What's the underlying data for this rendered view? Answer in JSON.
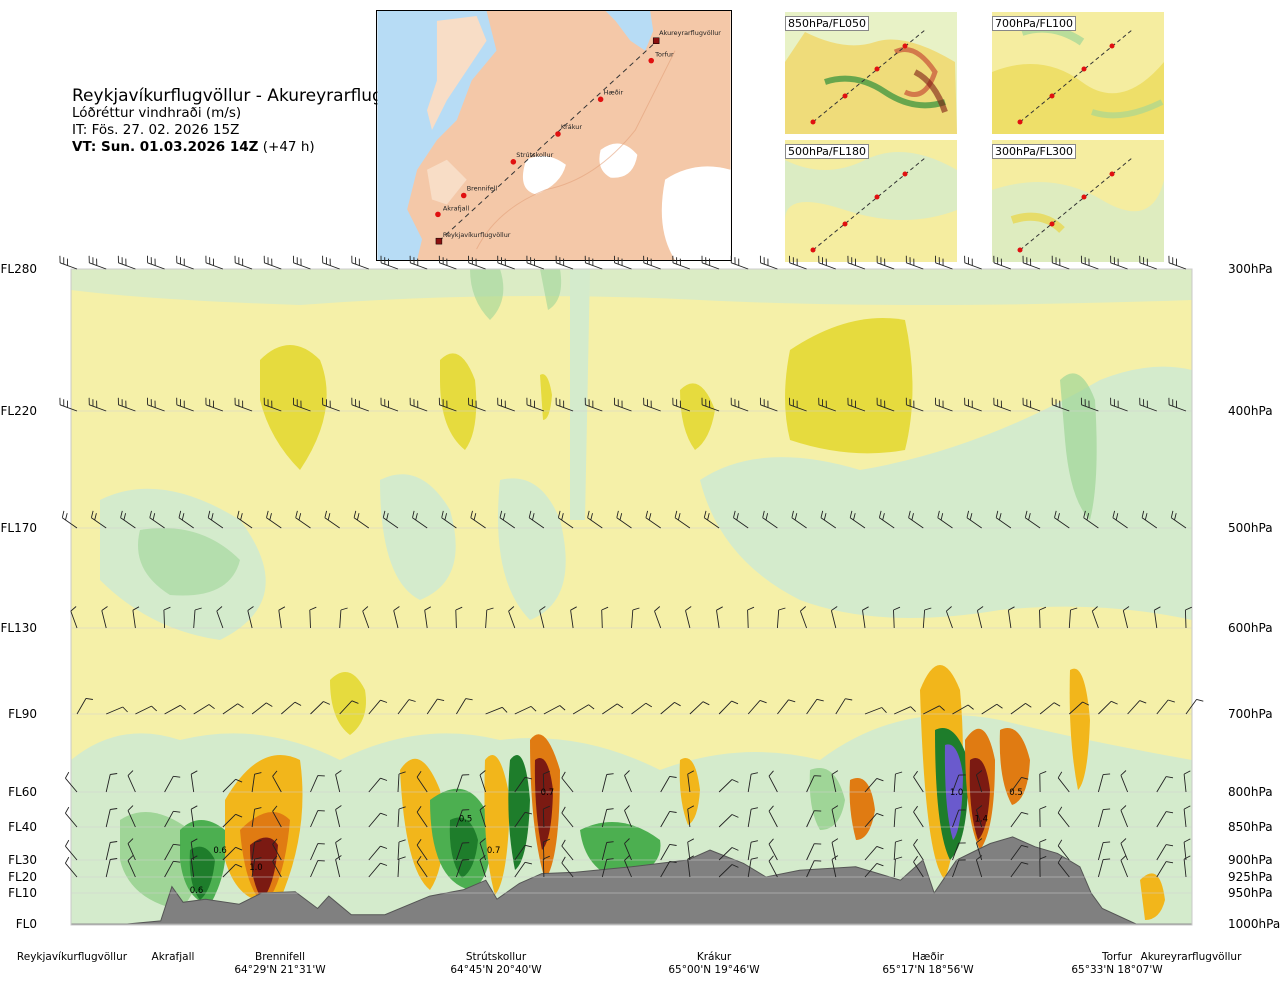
{
  "title_block": {
    "title": "Reykjavíkurflugvöllur - Akureyrarflugvöllur",
    "variable": "Lóðréttur vindhraði (m/s)",
    "init_time": "IT: Fös. 27. 02. 2026 15Z",
    "valid_time": "VT: Sun. 01.03.2026 14Z",
    "lead": "(+47 h)"
  },
  "overview_map": {
    "route_points": [
      "Akureyrarflugvöllur",
      "Torfur",
      "Hæðir",
      "Krákur",
      "Strútskollur",
      "Brennifell",
      "Akrafjall",
      "Reykjavíkurflugvöllur"
    ]
  },
  "mini_maps": [
    {
      "label": "850hPa/FL050"
    },
    {
      "label": "700hPa/FL100"
    },
    {
      "label": "500hPa/FL180"
    },
    {
      "label": "300hPa/FL300"
    }
  ],
  "colors": {
    "strong_up": "#7b1a12",
    "up_high": "#c0392b",
    "up_mid": "#e07b12",
    "up_low": "#f2b61b",
    "weak_up": "#f5e6a0",
    "neutral": "#fbf7d3",
    "weak_down": "#d4ebcc",
    "down_low": "#9fd597",
    "down_mid": "#4caf50",
    "down_high": "#1e7d2b",
    "strong_down": "#6a5acd",
    "terrain": "#808080",
    "background_upper": "#f5f0a8"
  },
  "chart_data": {
    "type": "heatmap",
    "title": "Lóðréttur vindhraði (m/s)",
    "left_axis_labels": [
      "FL280",
      "FL220",
      "FL170",
      "FL130",
      "FL90",
      "FL60",
      "FL40",
      "FL30",
      "FL20",
      "FL10",
      "FL0"
    ],
    "right_axis_labels": [
      "300hPa",
      "400hPa",
      "500hPa",
      "600hPa",
      "700hPa",
      "800hPa",
      "850hPa",
      "900hPa",
      "925hPa",
      "950hPa",
      "1000hPa"
    ],
    "pressure_levels": [
      300,
      400,
      500,
      600,
      700,
      800,
      850,
      900,
      925,
      950,
      1000
    ],
    "waypoints": [
      {
        "name": "Reykjavíkurflugvöllur",
        "coord": ""
      },
      {
        "name": "Akrafjall",
        "coord": ""
      },
      {
        "name": "Brennifell",
        "coord": "64°29'N 21°31'W"
      },
      {
        "name": "Strútskollur",
        "coord": "64°45'N 20°40'W"
      },
      {
        "name": "Krákur",
        "coord": "65°00'N 19°46'W"
      },
      {
        "name": "Hæðir",
        "coord": "65°17'N 18°56'W"
      },
      {
        "name": "Torfur",
        "coord": "65°33'N 18°07'W"
      },
      {
        "name": "Akureyrarflugvöllur",
        "coord": ""
      }
    ],
    "waypoint_distance_fraction": [
      0.0,
      0.09,
      0.185,
      0.378,
      0.572,
      0.762,
      0.935,
      1.0
    ],
    "contour_labels": [
      {
        "text": "0.6",
        "x": 0.133,
        "p": 885
      },
      {
        "text": "0.6",
        "x": 0.112,
        "p": 945
      },
      {
        "text": "1.0",
        "x": 0.165,
        "p": 910
      },
      {
        "text": "0.5",
        "x": 0.352,
        "p": 838
      },
      {
        "text": "0.7",
        "x": 0.377,
        "p": 885
      },
      {
        "text": "0.7",
        "x": 0.425,
        "p": 800
      },
      {
        "text": "1.0",
        "x": 0.79,
        "p": 800
      },
      {
        "text": "1.4",
        "x": 0.812,
        "p": 838
      },
      {
        "text": "0.5",
        "x": 0.843,
        "p": 800
      }
    ],
    "terrain_profile_hPa": [
      [
        0.0,
        1000
      ],
      [
        0.05,
        1000
      ],
      [
        0.08,
        995
      ],
      [
        0.09,
        940
      ],
      [
        0.1,
        965
      ],
      [
        0.12,
        960
      ],
      [
        0.15,
        968
      ],
      [
        0.17,
        950
      ],
      [
        0.2,
        948
      ],
      [
        0.22,
        975
      ],
      [
        0.23,
        955
      ],
      [
        0.25,
        985
      ],
      [
        0.28,
        985
      ],
      [
        0.32,
        955
      ],
      [
        0.35,
        945
      ],
      [
        0.37,
        930
      ],
      [
        0.38,
        960
      ],
      [
        0.4,
        935
      ],
      [
        0.42,
        920
      ],
      [
        0.45,
        918
      ],
      [
        0.5,
        910
      ],
      [
        0.55,
        900
      ],
      [
        0.57,
        885
      ],
      [
        0.6,
        905
      ],
      [
        0.62,
        925
      ],
      [
        0.65,
        915
      ],
      [
        0.7,
        910
      ],
      [
        0.74,
        930
      ],
      [
        0.76,
        900
      ],
      [
        0.77,
        950
      ],
      [
        0.79,
        900
      ],
      [
        0.82,
        875
      ],
      [
        0.84,
        865
      ],
      [
        0.86,
        880
      ],
      [
        0.88,
        890
      ],
      [
        0.9,
        910
      ],
      [
        0.91,
        950
      ],
      [
        0.92,
        975
      ],
      [
        0.95,
        1000
      ],
      [
        1.0,
        1000
      ]
    ],
    "wind_barb_levels": [
      300,
      400,
      500,
      600,
      700,
      800,
      850,
      900,
      925
    ]
  },
  "wp_names": [
    "Reykjavíkurflugvöllur",
    "Akrafjall",
    "Brennifell",
    "Strútskollur",
    "Krákur",
    "Hæðir",
    "Torfur",
    "Akureyrarflugvöllur"
  ],
  "wp_coords": [
    "",
    "",
    "64°29'N 21°31'W",
    "64°45'N 20°40'W",
    "65°00'N 19°46'W",
    "65°17'N 18°56'W",
    "65°33'N 18°07'W",
    ""
  ]
}
